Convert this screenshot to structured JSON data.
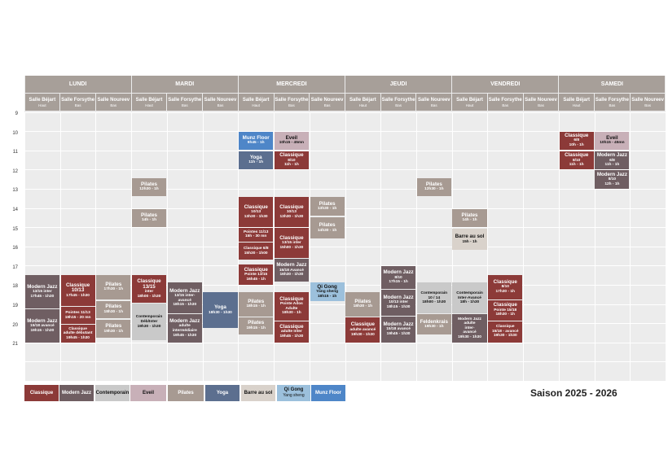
{
  "days": [
    "LUNDI",
    "MARDI",
    "MERCREDI",
    "JEUDI",
    "VENDREDI",
    "SAMEDI"
  ],
  "rooms": [
    {
      "name": "Salle Béjart",
      "level": "Haut"
    },
    {
      "name": "Salle Forsythe",
      "level": "Bas"
    },
    {
      "name": "Salle Noureev",
      "level": "Bas"
    }
  ],
  "hours": [
    "9",
    "10",
    "11",
    "12",
    "13",
    "14",
    "15",
    "16",
    "17",
    "18",
    "19",
    "20",
    "21"
  ],
  "colors": {
    "classique": "#8c3a38",
    "modernjazz": "#6f5e62",
    "contemporain": "#c9c9c9",
    "eveil": "#c8b0b8",
    "pilates": "#a79a92",
    "yoga": "#5c6f8f",
    "barre": "#d9d2cb",
    "qigong": "#9cc0dc",
    "munz": "#4e86c8"
  },
  "events": [
    {
      "day": 0,
      "room": 0,
      "start": 17.45,
      "end": 19.25,
      "cat": "modernjazz",
      "t": "Modern Jazz",
      "d": "13/15 inter\n17h45 - 1h30"
    },
    {
      "day": 0,
      "room": 0,
      "start": 19.25,
      "end": 21.0,
      "cat": "modernjazz",
      "t": "Modern Jazz",
      "d": "15/18 avancé\n19h15 - 1h30"
    },
    {
      "day": 0,
      "room": 1,
      "start": 17.45,
      "end": 19.1,
      "cat": "classique",
      "t": "Classique 10/13",
      "d": "17h45 - 1h30"
    },
    {
      "day": 0,
      "room": 1,
      "start": 19.1,
      "end": 20.05,
      "cat": "classique",
      "t": "",
      "d": "Pointes 11/13\n19h15 - 20 mn"
    },
    {
      "day": 0,
      "room": 1,
      "start": 20.05,
      "end": 21.0,
      "cat": "classique",
      "t": "",
      "d": "Classique\nadulte débutant\n19h45 - 1h30"
    },
    {
      "day": 0,
      "room": 2,
      "start": 17.45,
      "end": 18.75,
      "cat": "pilates",
      "t": "Pilates",
      "d": "17h30 - 1h"
    },
    {
      "day": 0,
      "room": 2,
      "start": 18.8,
      "end": 19.75,
      "cat": "pilates",
      "t": "Pilates",
      "d": "18h30 - 1h"
    },
    {
      "day": 0,
      "room": 2,
      "start": 19.8,
      "end": 20.75,
      "cat": "pilates",
      "t": "Pilates",
      "d": "19h30 - 1h"
    },
    {
      "day": 1,
      "room": 0,
      "start": 12.4,
      "end": 13.4,
      "cat": "pilates",
      "t": "Pilates",
      "d": "12h30 - 1h"
    },
    {
      "day": 1,
      "room": 0,
      "start": 14.0,
      "end": 15.0,
      "cat": "pilates",
      "t": "Pilates",
      "d": "14h - 1h"
    },
    {
      "day": 1,
      "room": 0,
      "start": 17.45,
      "end": 18.95,
      "cat": "classique",
      "t": "Classique 13/15",
      "d": "inter\n18h00 - 1h30"
    },
    {
      "day": 1,
      "room": 0,
      "start": 18.95,
      "end": 20.9,
      "cat": "contemporain",
      "t": "",
      "d": "Contemporain\nDéb/Inter\n19h30 - 1h30"
    },
    {
      "day": 1,
      "room": 1,
      "start": 17.85,
      "end": 19.5,
      "cat": "modernjazz",
      "t": "Modern Jazz",
      "d": "13/15 inter-\navancé\n18h15 - 1h30"
    },
    {
      "day": 1,
      "room": 1,
      "start": 19.5,
      "end": 21.0,
      "cat": "modernjazz",
      "t": "Modern Jazz",
      "d": "adulte\nintermédiaire\n19h45 - 1h30"
    },
    {
      "day": 1,
      "room": 2,
      "start": 18.35,
      "end": 20.25,
      "cat": "yoga",
      "t": "Yoga",
      "d": "18h30 - 1h30"
    },
    {
      "day": 2,
      "room": 0,
      "start": 10.0,
      "end": 10.95,
      "cat": "munz",
      "t": "Munz Floor",
      "d": "9h45 - 1h"
    },
    {
      "day": 2,
      "room": 0,
      "start": 11.0,
      "end": 12.0,
      "cat": "yoga",
      "t": "Yoga",
      "d": "11h - 1h"
    },
    {
      "day": 2,
      "room": 0,
      "start": 13.4,
      "end": 15.0,
      "cat": "classique",
      "t": "Classique",
      "d": "10/13\n13h30 - 1h30"
    },
    {
      "day": 2,
      "room": 0,
      "start": 15.0,
      "end": 15.75,
      "cat": "classique",
      "t": "",
      "d": "Pointes 11/13\n15h - 30 mn"
    },
    {
      "day": 2,
      "room": 0,
      "start": 15.75,
      "end": 16.7,
      "cat": "classique",
      "t": "",
      "d": "Classique 6/8\n15h30 - 1h00"
    },
    {
      "day": 2,
      "room": 0,
      "start": 16.9,
      "end": 18.0,
      "cat": "classique",
      "t": "Classique",
      "d": "Pointe 13/15\n16h45 - 1h"
    },
    {
      "day": 2,
      "room": 0,
      "start": 18.35,
      "end": 19.65,
      "cat": "pilates",
      "t": "Pilates",
      "d": "18h15 - 1h"
    },
    {
      "day": 2,
      "room": 0,
      "start": 19.65,
      "end": 20.6,
      "cat": "pilates",
      "t": "Pilates",
      "d": "19h15 - 1h"
    },
    {
      "day": 2,
      "room": 1,
      "start": 10.0,
      "end": 10.95,
      "cat": "eveil",
      "t": "Eveil",
      "d": "10h15 - 45mn"
    },
    {
      "day": 2,
      "room": 1,
      "start": 11.0,
      "end": 12.0,
      "cat": "classique",
      "t": "Classique",
      "d": "8/10\n11h - 1h"
    },
    {
      "day": 2,
      "room": 1,
      "start": 13.4,
      "end": 15.0,
      "cat": "classique",
      "t": "Classique",
      "d": "10/13\n13h30 - 1h30"
    },
    {
      "day": 2,
      "room": 1,
      "start": 15.0,
      "end": 16.6,
      "cat": "classique",
      "t": "Classique",
      "d": "13/15 inter\n15h00 - 1h30"
    },
    {
      "day": 2,
      "room": 1,
      "start": 16.6,
      "end": 17.85,
      "cat": "modernjazz",
      "t": "Modern Jazz",
      "d": "15/18 Avancé\n16h30 - 1h30"
    },
    {
      "day": 2,
      "room": 1,
      "start": 18.35,
      "end": 19.85,
      "cat": "classique",
      "t": "Classique",
      "d": "Pointe Ados\nAdulte\n18h30 - 1h"
    },
    {
      "day": 2,
      "room": 1,
      "start": 19.85,
      "end": 21.0,
      "cat": "classique",
      "t": "Classique",
      "d": "adulte Inter\n19h45 - 1h30"
    },
    {
      "day": 2,
      "room": 2,
      "start": 13.4,
      "end": 14.4,
      "cat": "pilates",
      "t": "Pilates",
      "d": "13h30 - 1h"
    },
    {
      "day": 2,
      "room": 2,
      "start": 14.45,
      "end": 15.6,
      "cat": "pilates",
      "t": "Pilates",
      "d": "14h30 - 1h"
    },
    {
      "day": 2,
      "room": 2,
      "start": 17.85,
      "end": 18.85,
      "cat": "qigong",
      "t": "Qi Gong",
      "d": "Yang sheng\n18h15 - 1h"
    },
    {
      "day": 3,
      "room": 0,
      "start": 18.35,
      "end": 19.65,
      "cat": "pilates",
      "t": "Pilates",
      "d": "18h30 - 1h"
    },
    {
      "day": 3,
      "room": 0,
      "start": 19.65,
      "end": 21.0,
      "cat": "classique",
      "t": "Classique",
      "d": "adulte avancé\n19h30 - 1h30"
    },
    {
      "day": 3,
      "room": 1,
      "start": 17.0,
      "end": 18.2,
      "cat": "modernjazz",
      "t": "Modern Jazz",
      "d": "8/10\n17h15 - 1h"
    },
    {
      "day": 3,
      "room": 1,
      "start": 18.2,
      "end": 19.6,
      "cat": "modernjazz",
      "t": "Modern Jazz",
      "d": "10/13 inter\n18h15 - 1h30"
    },
    {
      "day": 3,
      "room": 1,
      "start": 19.6,
      "end": 21.0,
      "cat": "modernjazz",
      "t": "Modern Jazz",
      "d": "15/18 avancé\n19h45 - 1h30"
    },
    {
      "day": 3,
      "room": 2,
      "start": 12.4,
      "end": 13.4,
      "cat": "pilates",
      "t": "Pilates",
      "d": "12h30 - 1h"
    },
    {
      "day": 3,
      "room": 2,
      "start": 17.85,
      "end": 19.5,
      "cat": "contemporain",
      "t": "",
      "d": "Contemporain\n10 / 14\n18h00 - 1h30"
    },
    {
      "day": 3,
      "room": 2,
      "start": 19.5,
      "end": 20.6,
      "cat": "pilates",
      "t": "Feldenkrais",
      "d": "19h30 - 1h"
    },
    {
      "day": 4,
      "room": 0,
      "start": 14.0,
      "end": 15.0,
      "cat": "pilates",
      "t": "Pilates",
      "d": "14h - 1h"
    },
    {
      "day": 4,
      "room": 0,
      "start": 15.05,
      "end": 16.2,
      "cat": "barre",
      "t": "Barre au sol",
      "d": "15h - 1h"
    },
    {
      "day": 4,
      "room": 0,
      "start": 17.85,
      "end": 19.5,
      "cat": "contemporain",
      "t": "",
      "d": "Contemporain\nInter-Avancé\n18h - 1h30"
    },
    {
      "day": 4,
      "room": 0,
      "start": 19.5,
      "end": 21.0,
      "cat": "modernjazz",
      "t": "",
      "d": "Modern Jazz adulte\ninter-\navancé\n19h30 - 1h30"
    },
    {
      "day": 4,
      "room": 1,
      "start": 17.45,
      "end": 18.75,
      "cat": "classique",
      "t": "Classique",
      "d": "8/10\n17h30 - 1h"
    },
    {
      "day": 4,
      "room": 1,
      "start": 18.75,
      "end": 19.85,
      "cat": "classique",
      "t": "Classique",
      "d": "Pointe 15/18\n18h30 - 1h"
    },
    {
      "day": 4,
      "room": 1,
      "start": 19.85,
      "end": 21.0,
      "cat": "classique",
      "t": "",
      "d": "Classique\n15/18 - avancé\n19h30 - 1h30"
    },
    {
      "day": 5,
      "room": 0,
      "start": 10.0,
      "end": 10.95,
      "cat": "classique",
      "t": "Classique",
      "d": "6/8\n10h - 1h"
    },
    {
      "day": 5,
      "room": 0,
      "start": 11.0,
      "end": 12.0,
      "cat": "classique",
      "t": "Classique",
      "d": "8/10\n11h - 1h"
    },
    {
      "day": 5,
      "room": 1,
      "start": 10.0,
      "end": 10.95,
      "cat": "eveil",
      "t": "Eveil",
      "d": "10h15 - 45mn"
    },
    {
      "day": 5,
      "room": 1,
      "start": 11.0,
      "end": 12.0,
      "cat": "modernjazz",
      "t": "Modern Jazz",
      "d": "6/8\n11h - 1h"
    },
    {
      "day": 5,
      "room": 1,
      "start": 12.0,
      "end": 13.0,
      "cat": "modernjazz",
      "t": "Modern Jazz",
      "d": "8/10\n12h - 1h"
    }
  ],
  "legend": [
    {
      "cat": "classique",
      "t": "Classique",
      "s": ""
    },
    {
      "cat": "modernjazz",
      "t": "Modern Jazz",
      "s": ""
    },
    {
      "cat": "contemporain",
      "t": "Contemporain",
      "s": ""
    },
    {
      "cat": "eveil",
      "t": "Eveil",
      "s": ""
    },
    {
      "cat": "pilates",
      "t": "Pilates",
      "s": ""
    },
    {
      "cat": "yoga",
      "t": "Yoga",
      "s": ""
    },
    {
      "cat": "barre",
      "t": "Barre au sol",
      "s": ""
    },
    {
      "cat": "qigong",
      "t": "Qi Gong",
      "s": "Yang sheng"
    },
    {
      "cat": "munz",
      "t": "Munz Floor",
      "s": ""
    }
  ],
  "season": "Saison 2025 - 2026"
}
